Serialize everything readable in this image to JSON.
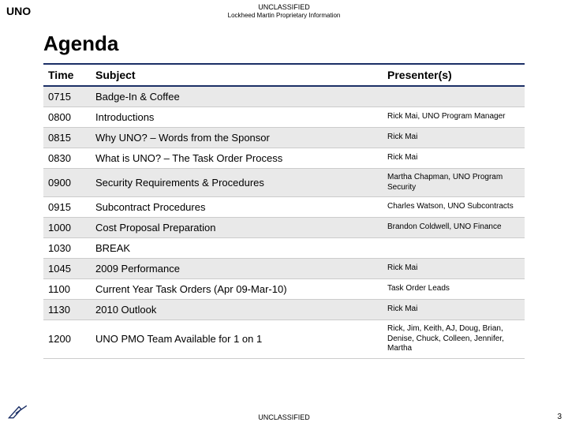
{
  "header": {
    "topLeft": "UNO",
    "classification": "UNCLASSIFIED",
    "proprietary": "Lockheed Martin Proprietary Information",
    "title": "Agenda"
  },
  "table": {
    "columns": [
      "Time",
      "Subject",
      "Presenter(s)"
    ],
    "rows": [
      {
        "time": "0715",
        "subject": "Badge-In & Coffee",
        "presenter": ""
      },
      {
        "time": "0800",
        "subject": "Introductions",
        "presenter": "Rick Mai,\nUNO Program Manager"
      },
      {
        "time": "0815",
        "subject": "Why UNO? – Words from the Sponsor",
        "presenter": "Rick Mai"
      },
      {
        "time": "0830",
        "subject": "What is UNO? – The Task Order Process",
        "presenter": "Rick Mai"
      },
      {
        "time": "0900",
        "subject": "Security Requirements & Procedures",
        "presenter": "Martha Chapman,\nUNO Program Security"
      },
      {
        "time": "0915",
        "subject": "Subcontract Procedures",
        "presenter": "Charles Watson,\nUNO Subcontracts"
      },
      {
        "time": "1000",
        "subject": "Cost Proposal Preparation",
        "presenter": "Brandon Coldwell,\nUNO Finance"
      },
      {
        "time": "1030",
        "subject": "BREAK",
        "presenter": ""
      },
      {
        "time": "1045",
        "subject": "2009 Performance",
        "presenter": "Rick Mai"
      },
      {
        "time": "1100",
        "subject": "Current Year Task Orders (Apr 09-Mar-10)",
        "presenter": "Task Order Leads"
      },
      {
        "time": "1130",
        "subject": "2010 Outlook",
        "presenter": "Rick Mai"
      },
      {
        "time": "1200",
        "subject": "UNO PMO Team Available for 1 on 1",
        "presenter": "Rick, Jim, Keith, AJ, Doug, Brian, Denise, Chuck, Colleen, Jennifer, Martha"
      }
    ]
  },
  "footer": {
    "classification": "UNCLASSIFIED",
    "pageNumber": "3"
  },
  "styling": {
    "header_border_color": "#1b2f66",
    "row_alt_bg": "#e9e9e9",
    "row_bg": "#ffffff"
  }
}
